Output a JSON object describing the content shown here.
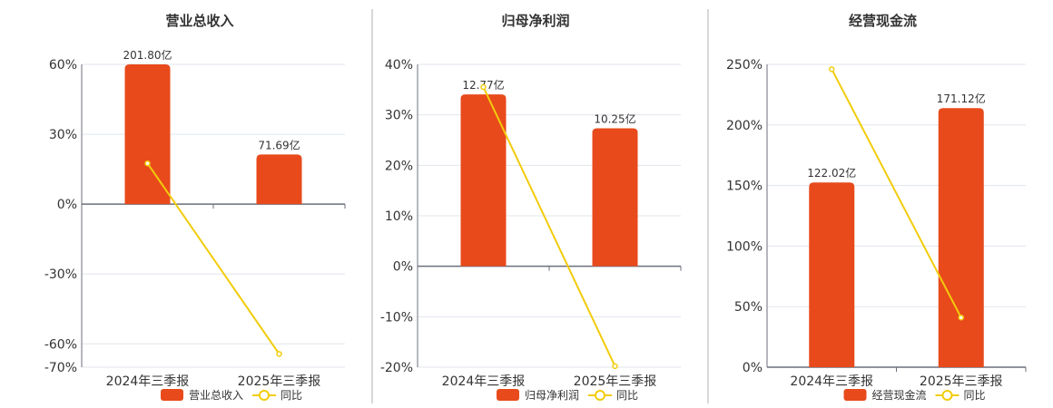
{
  "colors": {
    "bar": "#e84a1b",
    "line": "#f2cc0c",
    "grid": "#e1e5ee",
    "axis": "#6b6f7b",
    "divider": "#b0b0b0",
    "text": "#333333"
  },
  "chart_data": [
    {
      "type": "bar+line",
      "title": "营业总收入",
      "categories": [
        "2024年三季报",
        "2025年三季报"
      ],
      "bar_series": {
        "name": "营业总收入",
        "values": [
          201.8,
          71.69
        ],
        "labels": [
          "201.80亿",
          "71.69亿"
        ],
        "axis_max": 201.8
      },
      "line_series": {
        "name": "同比",
        "values": [
          17.5,
          -64.3
        ]
      },
      "yticks": [
        "60%",
        "30%",
        "0%",
        "-30%",
        "-60%",
        "-70%"
      ],
      "ytick_values": [
        60,
        30,
        0,
        -30,
        -60,
        -70
      ],
      "ylim": [
        -70,
        60
      ],
      "grid": true,
      "legend": "bottom"
    },
    {
      "type": "bar+line",
      "title": "归母净利润",
      "categories": [
        "2024年三季报",
        "2025年三季报"
      ],
      "bar_series": {
        "name": "归母净利润",
        "values": [
          12.77,
          10.25
        ],
        "labels": [
          "12.77亿",
          "10.25亿"
        ],
        "axis_max": 15
      },
      "line_series": {
        "name": "同比",
        "values": [
          35.5,
          -19.8
        ]
      },
      "yticks": [
        "40%",
        "30%",
        "20%",
        "10%",
        "0%",
        "-10%",
        "-20%"
      ],
      "ytick_values": [
        40,
        30,
        20,
        10,
        0,
        -10,
        -20
      ],
      "ylim": [
        -20,
        40
      ],
      "grid": true,
      "legend": "bottom"
    },
    {
      "type": "bar+line",
      "title": "经营现金流",
      "categories": [
        "2024年三季报",
        "2025年三季报"
      ],
      "bar_series": {
        "name": "经营现金流",
        "values": [
          122.02,
          171.12
        ],
        "labels": [
          "122.02亿",
          "171.12亿"
        ],
        "axis_max": 200
      },
      "line_series": {
        "name": "同比",
        "values": [
          246,
          41
        ]
      },
      "yticks": [
        "250%",
        "200%",
        "150%",
        "100%",
        "50%",
        "0%"
      ],
      "ytick_values": [
        250,
        200,
        150,
        100,
        50,
        0
      ],
      "ylim": [
        0,
        250
      ],
      "grid": true,
      "legend": "bottom"
    }
  ]
}
